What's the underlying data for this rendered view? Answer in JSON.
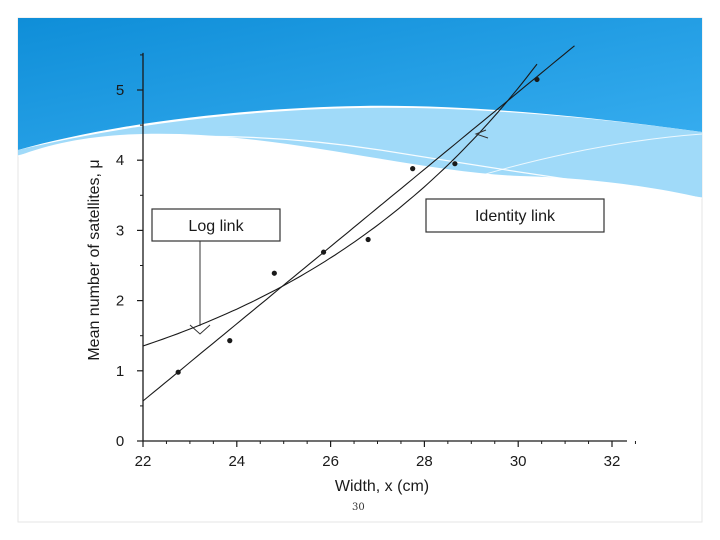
{
  "colors": {
    "banner_dark": "#0f8ed8",
    "banner_light": "#8fd4f8",
    "ink": "#1a1a1a"
  },
  "page_number": "30",
  "chart_data": {
    "type": "scatter",
    "title": "",
    "xlabel": "Width, x (cm)",
    "ylabel": "Mean number of satellites, μ",
    "xlim": [
      22,
      32
    ],
    "ylim": [
      0,
      5.5
    ],
    "x_ticks": [
      "22",
      "24",
      "26",
      "28",
      "30",
      "32"
    ],
    "y_ticks": [
      "0",
      "1",
      "2",
      "3",
      "4",
      "5"
    ],
    "points": {
      "x": [
        22.75,
        23.85,
        24.8,
        25.85,
        26.8,
        27.75,
        28.65,
        30.4
      ],
      "y": [
        0.98,
        1.43,
        2.39,
        2.69,
        2.87,
        3.88,
        3.95,
        5.15
      ]
    },
    "series": [
      {
        "name": "Log link",
        "function": "log",
        "x_range": [
          22.0,
          30.4
        ]
      },
      {
        "name": "Identity link",
        "function": "identity",
        "x_range": [
          22.0,
          31.2
        ]
      }
    ],
    "annotations": [
      "Log link",
      "Identity link"
    ]
  }
}
